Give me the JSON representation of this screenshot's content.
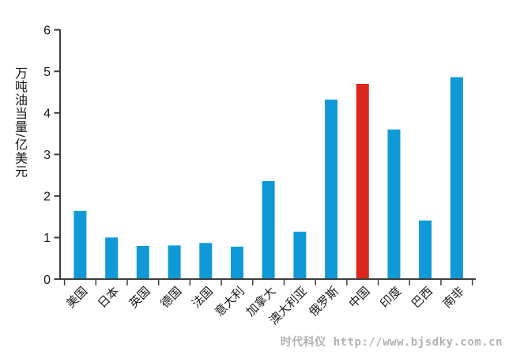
{
  "watermark": "时代科仪 http://www.bjsdky.com.cn",
  "chart_data": {
    "type": "bar",
    "title": "",
    "xlabel": "",
    "ylabel": "万吨油当量/亿美元",
    "categories": [
      "美国",
      "日本",
      "英国",
      "德国",
      "法国",
      "意大利",
      "加拿大",
      "澳大利亚",
      "俄罗斯",
      "中国",
      "印度",
      "巴西",
      "南非"
    ],
    "values": [
      1.64,
      1.0,
      0.8,
      0.81,
      0.87,
      0.78,
      2.36,
      1.14,
      4.32,
      4.7,
      3.6,
      1.41,
      4.86
    ],
    "ylim": [
      0,
      6
    ],
    "yticks": [
      0,
      1,
      2,
      3,
      4,
      5,
      6
    ],
    "grid": false,
    "legend": false,
    "bar_color": "#0f9ad7",
    "highlight_color": "#da251d",
    "highlight_category": "中国",
    "highlight_index": 9,
    "axis_color": "#3d3d3d",
    "label_rotation_deg": -45
  }
}
